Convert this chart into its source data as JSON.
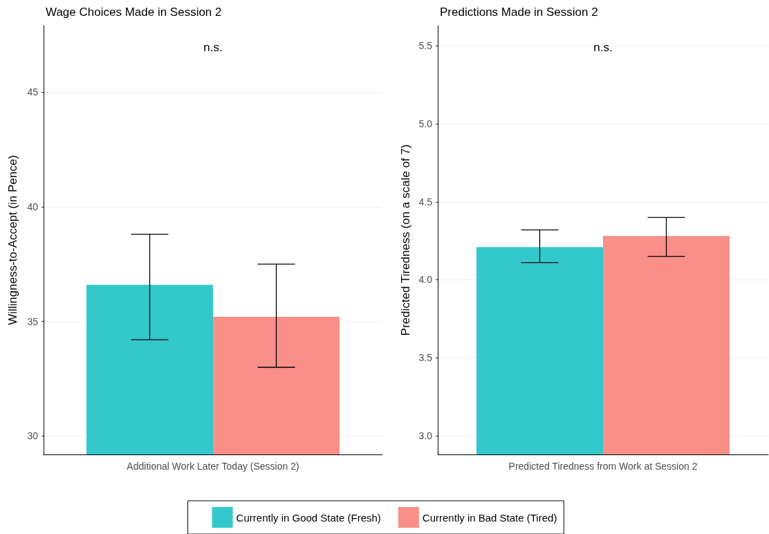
{
  "chart_data": [
    {
      "type": "bar",
      "title": "Wage Choices Made in Session 2",
      "ylabel": "Willingness-to-Accept (in Pence)",
      "categories": [
        "Additional Work Later Today (Session 2)"
      ],
      "series": [
        {
          "name": "Currently in Good State (Fresh)",
          "color": "#33c9cc",
          "values": [
            36.6
          ],
          "errors": [
            [
              34.2,
              38.8
            ]
          ]
        },
        {
          "name": "Currently in Bad State (Tired)",
          "color": "#f98f88",
          "values": [
            35.2
          ],
          "errors": [
            [
              33.0,
              37.5
            ]
          ]
        }
      ],
      "ylim": [
        29.2,
        47.9
      ],
      "yticks": [
        30,
        35,
        40,
        45
      ],
      "grid": "y",
      "legend": "bottom",
      "annotations": [
        "n.s."
      ]
    },
    {
      "type": "bar",
      "title": "Predictions Made in Session 2",
      "ylabel": "Predicted Tiredness (on a scale of 7)",
      "categories": [
        "Predicted Tiredness from Work at Session 2"
      ],
      "series": [
        {
          "color": "#33c9cc",
          "values": [
            4.21
          ],
          "errors": [
            [
              4.11,
              4.32
            ]
          ]
        },
        {
          "color": "#f98f88",
          "values": [
            4.28
          ],
          "errors": [
            [
              4.15,
              4.4
            ]
          ]
        }
      ],
      "ylim": [
        2.88,
        5.63
      ],
      "yticks": [
        {
          "value": 3,
          "label": "3.0"
        },
        {
          "value": 3.5,
          "label": "3.5"
        },
        {
          "value": 4,
          "label": "4.0"
        },
        {
          "value": 4.5,
          "label": "4.5"
        },
        {
          "value": 5,
          "label": "5.0"
        },
        {
          "value": 5.5,
          "label": "5.5"
        }
      ],
      "grid": "y",
      "legend": false,
      "annotations": [
        "n.s."
      ]
    }
  ]
}
